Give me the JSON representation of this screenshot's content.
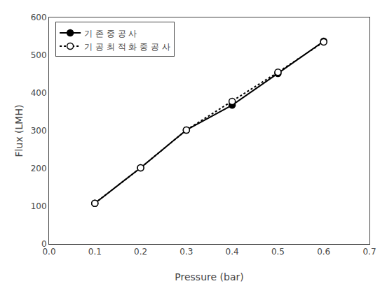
{
  "chart_data": {
    "type": "line",
    "x_label": "Pressure (bar)",
    "y_label": "Flux (LMH)",
    "x": [
      0.1,
      0.2,
      0.3,
      0.4,
      0.5,
      0.6
    ],
    "series": [
      {
        "name": "기 존 중 공 사",
        "color": "black",
        "marker": "circle",
        "line_style": "solid",
        "values": [
          108,
          202,
          302,
          368,
          452,
          537
        ]
      },
      {
        "name": "기 공 최 적 화 중 공 사",
        "color": "black",
        "marker": "circle-open",
        "line_style": "dot",
        "values": [
          108,
          202,
          302,
          378,
          455,
          535
        ]
      }
    ],
    "xlim": [
      0.0,
      0.7
    ],
    "ylim": [
      0,
      600
    ],
    "xticks": [
      {
        "value": 0,
        "label": "0.0"
      },
      0.1,
      0.2,
      0.3,
      0.4,
      0.5,
      0.6,
      0.7
    ],
    "yticks": [
      0,
      100,
      200,
      300,
      400,
      500,
      600
    ],
    "grid": false,
    "legend": "upper left"
  }
}
